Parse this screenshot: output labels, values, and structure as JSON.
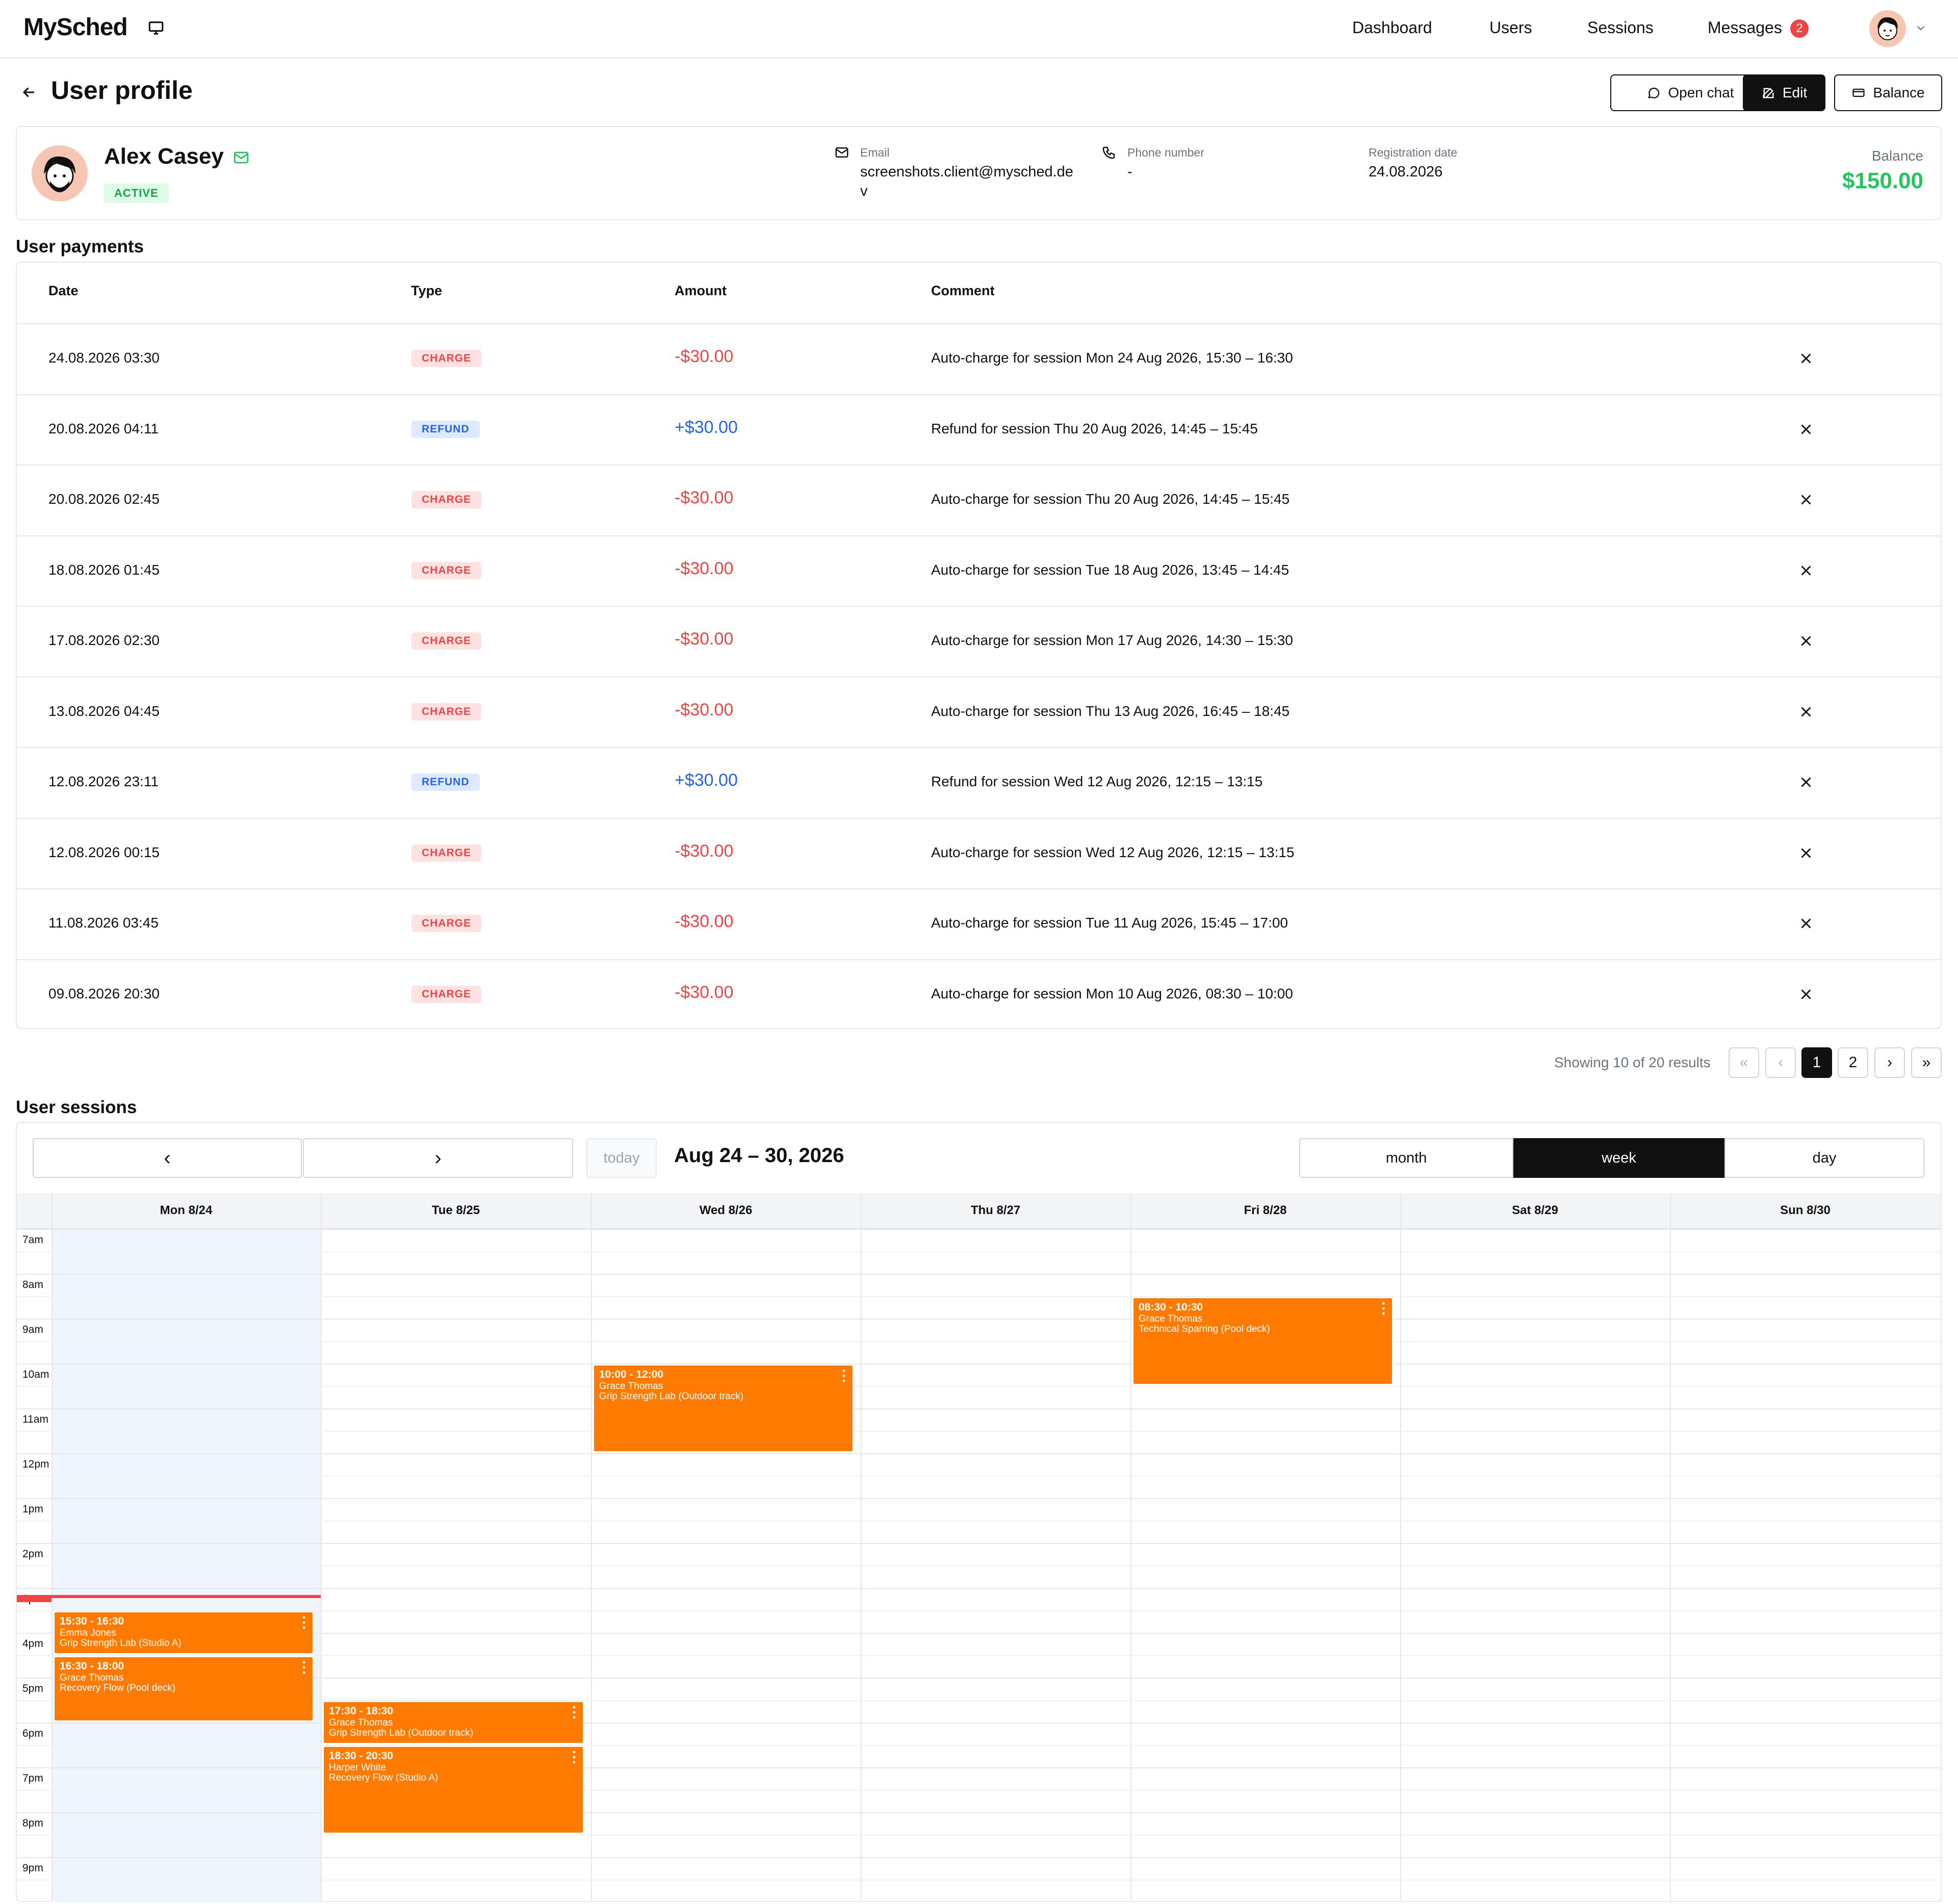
{
  "header": {
    "logo": "MySched",
    "nav": {
      "dashboard": "Dashboard",
      "users": "Users",
      "sessions": "Sessions",
      "messages": "Messages"
    },
    "messages_badge": "2"
  },
  "page": {
    "title": "User profile",
    "buttons": {
      "open_chat": "Open chat",
      "edit": "Edit",
      "balance": "Balance"
    }
  },
  "profile": {
    "name": "Alex Casey",
    "status": "ACTIVE",
    "email_label": "Email",
    "email_value": "screenshots.client@mysched.de v",
    "phone_label": "Phone number",
    "phone_value": "-",
    "reg_label": "Registration date",
    "reg_value": "24.08.2026",
    "balance_label": "Balance",
    "balance_value": "$150.00"
  },
  "payments": {
    "title": "User payments",
    "columns": {
      "date": "Date",
      "type": "Type",
      "amount": "Amount",
      "comment": "Comment"
    },
    "rows": [
      {
        "date": "24.08.2026 03:30",
        "type": "CHARGE",
        "amount": "-$30.00",
        "comment": "Auto-charge for session Mon 24 Aug 2026, 15:30 – 16:30"
      },
      {
        "date": "20.08.2026 04:11",
        "type": "REFUND",
        "amount": "+$30.00",
        "comment": "Refund for session Thu 20 Aug 2026, 14:45 – 15:45"
      },
      {
        "date": "20.08.2026 02:45",
        "type": "CHARGE",
        "amount": "-$30.00",
        "comment": "Auto-charge for session Thu 20 Aug 2026, 14:45 – 15:45"
      },
      {
        "date": "18.08.2026 01:45",
        "type": "CHARGE",
        "amount": "-$30.00",
        "comment": "Auto-charge for session Tue 18 Aug 2026, 13:45 – 14:45"
      },
      {
        "date": "17.08.2026 02:30",
        "type": "CHARGE",
        "amount": "-$30.00",
        "comment": "Auto-charge for session Mon 17 Aug 2026, 14:30 – 15:30"
      },
      {
        "date": "13.08.2026 04:45",
        "type": "CHARGE",
        "amount": "-$30.00",
        "comment": "Auto-charge for session Thu 13 Aug 2026, 16:45 – 18:45"
      },
      {
        "date": "12.08.2026 23:11",
        "type": "REFUND",
        "amount": "+$30.00",
        "comment": "Refund for session Wed 12 Aug 2026, 12:15 – 13:15"
      },
      {
        "date": "12.08.2026 00:15",
        "type": "CHARGE",
        "amount": "-$30.00",
        "comment": "Auto-charge for session Wed 12 Aug 2026, 12:15 – 13:15"
      },
      {
        "date": "11.08.2026 03:45",
        "type": "CHARGE",
        "amount": "-$30.00",
        "comment": "Auto-charge for session Tue 11 Aug 2026, 15:45 – 17:00"
      },
      {
        "date": "09.08.2026 20:30",
        "type": "CHARGE",
        "amount": "-$30.00",
        "comment": "Auto-charge for session Mon 10 Aug 2026, 08:30 – 10:00"
      }
    ],
    "pagination": {
      "summary": "Showing 10 of 20 results",
      "first": "«",
      "prev": "‹",
      "page1": "1",
      "page2": "2",
      "next": "›",
      "last": "»"
    }
  },
  "sessions": {
    "title": "User sessions",
    "prev": "‹",
    "next": "›",
    "today": "today",
    "range": "Aug 24 – 30, 2026",
    "views": {
      "month": "month",
      "week": "week",
      "day": "day"
    },
    "days": [
      "Mon 8/24",
      "Tue 8/25",
      "Wed 8/26",
      "Thu 8/27",
      "Fri 8/28",
      "Sat 8/29",
      "Sun 8/30"
    ],
    "times": [
      "7am",
      "8am",
      "9am",
      "10am",
      "11am",
      "12pm",
      "1pm",
      "2pm",
      "3pm",
      "4pm",
      "5pm",
      "6pm",
      "7pm",
      "8pm",
      "9pm"
    ],
    "events": [
      {
        "day": 4,
        "start": 8.5,
        "end": 10.5,
        "time": "08:30 - 10:30",
        "person": "Grace Thomas",
        "session": "Technical Sparring (Pool deck)"
      },
      {
        "day": 2,
        "start": 10,
        "end": 12,
        "time": "10:00 - 12:00",
        "person": "Grace Thomas",
        "session": "Grip Strength Lab (Outdoor track)"
      },
      {
        "day": 0,
        "start": 15.5,
        "end": 16.5,
        "time": "15:30 - 16:30",
        "person": "Emma Jones",
        "session": "Grip Strength Lab (Studio A)"
      },
      {
        "day": 0,
        "start": 16.5,
        "end": 18,
        "time": "16:30 - 18:00",
        "person": "Grace Thomas",
        "session": "Recovery Flow (Pool deck)"
      },
      {
        "day": 1,
        "start": 17.5,
        "end": 18.5,
        "time": "17:30 - 18:30",
        "person": "Grace Thomas",
        "session": "Grip Strength Lab (Outdoor track)"
      },
      {
        "day": 1,
        "start": 18.5,
        "end": 20.5,
        "time": "18:30 - 20:30",
        "person": "Harper White",
        "session": "Recovery Flow (Studio A)"
      }
    ]
  }
}
